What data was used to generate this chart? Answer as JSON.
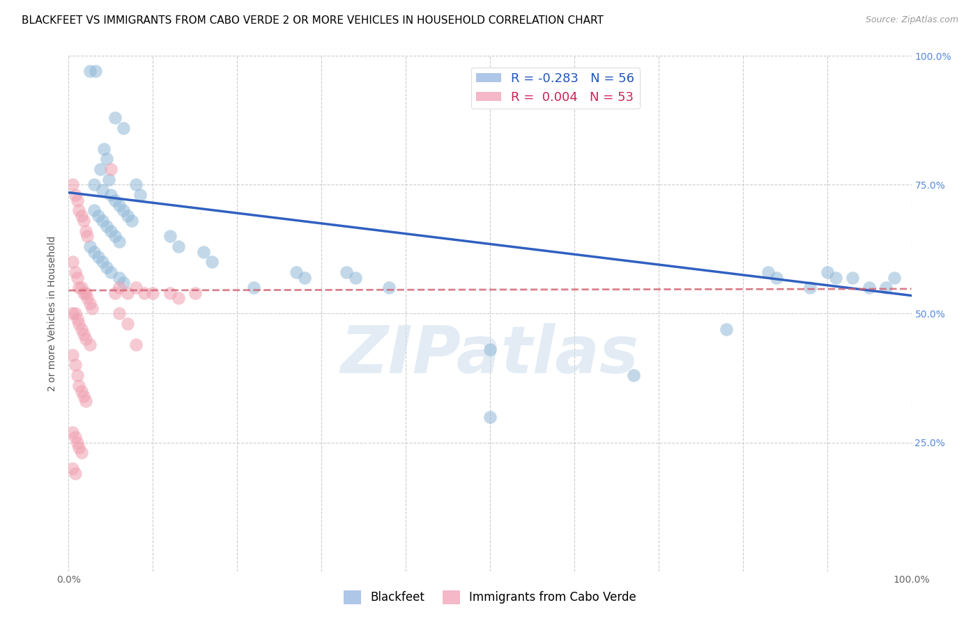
{
  "title": "BLACKFEET VS IMMIGRANTS FROM CABO VERDE 2 OR MORE VEHICLES IN HOUSEHOLD CORRELATION CHART",
  "source": "Source: ZipAtlas.com",
  "ylabel": "2 or more Vehicles in Household",
  "y_ticks": [
    0.0,
    0.25,
    0.5,
    0.75,
    1.0
  ],
  "y_tick_labels": [
    "",
    "25.0%",
    "50.0%",
    "75.0%",
    "100.0%"
  ],
  "x_ticks": [
    0.0,
    0.1,
    0.2,
    0.3,
    0.4,
    0.5,
    0.6,
    0.7,
    0.8,
    0.9,
    1.0
  ],
  "watermark": "ZIPatlas",
  "legend_entries": [
    {
      "label": "R = -0.283   N = 56",
      "facecolor": "#aec6e8"
    },
    {
      "label": "R =  0.004   N = 53",
      "facecolor": "#f4b8c8"
    }
  ],
  "blackfeet_color": "#90b8d8",
  "cabo_verde_color": "#f0a0b0",
  "blue_line_color": "#3060c0",
  "pink_line_color": "#d06070",
  "blue_scatter": [
    [
      0.025,
      0.97
    ],
    [
      0.032,
      0.97
    ],
    [
      0.055,
      0.88
    ],
    [
      0.065,
      0.86
    ],
    [
      0.042,
      0.82
    ],
    [
      0.045,
      0.8
    ],
    [
      0.038,
      0.78
    ],
    [
      0.048,
      0.76
    ],
    [
      0.03,
      0.75
    ],
    [
      0.04,
      0.74
    ],
    [
      0.05,
      0.73
    ],
    [
      0.055,
      0.72
    ],
    [
      0.06,
      0.71
    ],
    [
      0.065,
      0.7
    ],
    [
      0.07,
      0.69
    ],
    [
      0.075,
      0.68
    ],
    [
      0.08,
      0.75
    ],
    [
      0.085,
      0.73
    ],
    [
      0.03,
      0.7
    ],
    [
      0.035,
      0.69
    ],
    [
      0.04,
      0.68
    ],
    [
      0.045,
      0.67
    ],
    [
      0.05,
      0.66
    ],
    [
      0.055,
      0.65
    ],
    [
      0.06,
      0.64
    ],
    [
      0.025,
      0.63
    ],
    [
      0.03,
      0.62
    ],
    [
      0.035,
      0.61
    ],
    [
      0.04,
      0.6
    ],
    [
      0.045,
      0.59
    ],
    [
      0.05,
      0.58
    ],
    [
      0.06,
      0.57
    ],
    [
      0.065,
      0.56
    ],
    [
      0.12,
      0.65
    ],
    [
      0.13,
      0.63
    ],
    [
      0.16,
      0.62
    ],
    [
      0.17,
      0.6
    ],
    [
      0.22,
      0.55
    ],
    [
      0.27,
      0.58
    ],
    [
      0.28,
      0.57
    ],
    [
      0.33,
      0.58
    ],
    [
      0.34,
      0.57
    ],
    [
      0.38,
      0.55
    ],
    [
      0.5,
      0.43
    ],
    [
      0.5,
      0.3
    ],
    [
      0.67,
      0.38
    ],
    [
      0.78,
      0.47
    ],
    [
      0.83,
      0.58
    ],
    [
      0.84,
      0.57
    ],
    [
      0.88,
      0.55
    ],
    [
      0.9,
      0.58
    ],
    [
      0.91,
      0.57
    ],
    [
      0.93,
      0.57
    ],
    [
      0.95,
      0.55
    ],
    [
      0.97,
      0.55
    ],
    [
      0.98,
      0.57
    ]
  ],
  "cabo_verde_scatter": [
    [
      0.005,
      0.75
    ],
    [
      0.008,
      0.73
    ],
    [
      0.01,
      0.72
    ],
    [
      0.012,
      0.7
    ],
    [
      0.015,
      0.69
    ],
    [
      0.018,
      0.68
    ],
    [
      0.02,
      0.66
    ],
    [
      0.022,
      0.65
    ],
    [
      0.005,
      0.6
    ],
    [
      0.008,
      0.58
    ],
    [
      0.01,
      0.57
    ],
    [
      0.012,
      0.55
    ],
    [
      0.015,
      0.55
    ],
    [
      0.018,
      0.54
    ],
    [
      0.02,
      0.54
    ],
    [
      0.022,
      0.53
    ],
    [
      0.025,
      0.52
    ],
    [
      0.028,
      0.51
    ],
    [
      0.005,
      0.5
    ],
    [
      0.008,
      0.5
    ],
    [
      0.01,
      0.49
    ],
    [
      0.012,
      0.48
    ],
    [
      0.015,
      0.47
    ],
    [
      0.018,
      0.46
    ],
    [
      0.02,
      0.45
    ],
    [
      0.025,
      0.44
    ],
    [
      0.005,
      0.42
    ],
    [
      0.008,
      0.4
    ],
    [
      0.01,
      0.38
    ],
    [
      0.012,
      0.36
    ],
    [
      0.015,
      0.35
    ],
    [
      0.018,
      0.34
    ],
    [
      0.02,
      0.33
    ],
    [
      0.005,
      0.27
    ],
    [
      0.008,
      0.26
    ],
    [
      0.01,
      0.25
    ],
    [
      0.012,
      0.24
    ],
    [
      0.015,
      0.23
    ],
    [
      0.005,
      0.2
    ],
    [
      0.008,
      0.19
    ],
    [
      0.06,
      0.55
    ],
    [
      0.07,
      0.54
    ],
    [
      0.08,
      0.55
    ],
    [
      0.09,
      0.54
    ],
    [
      0.1,
      0.54
    ],
    [
      0.12,
      0.54
    ],
    [
      0.13,
      0.53
    ],
    [
      0.15,
      0.54
    ],
    [
      0.05,
      0.78
    ],
    [
      0.055,
      0.54
    ],
    [
      0.06,
      0.5
    ],
    [
      0.07,
      0.48
    ],
    [
      0.08,
      0.44
    ]
  ],
  "blue_line": {
    "x0": 0.0,
    "y0": 0.735,
    "x1": 1.0,
    "y1": 0.535
  },
  "pink_line": {
    "x0": 0.0,
    "y0": 0.545,
    "x1": 1.0,
    "y1": 0.548
  },
  "background_color": "#ffffff",
  "grid_color": "#cccccc",
  "title_fontsize": 11,
  "axis_label_fontsize": 10,
  "tick_fontsize": 10,
  "source_fontsize": 9
}
